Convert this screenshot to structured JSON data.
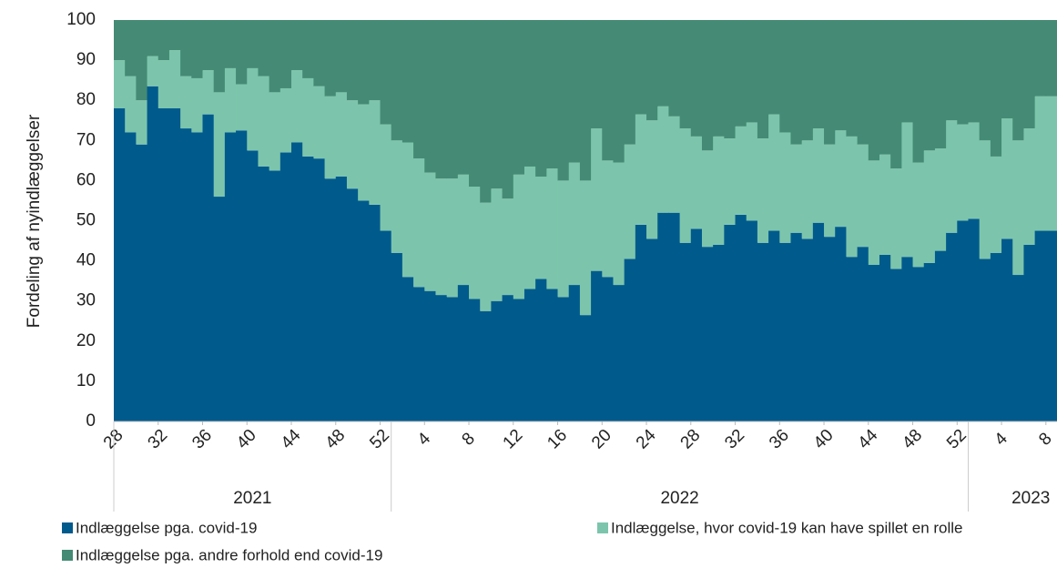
{
  "chart_data": {
    "type": "stacked_bar",
    "y_axis_label": "Fordeling af nyindlæggelser",
    "categories": [
      "28",
      null,
      null,
      null,
      "32",
      null,
      null,
      null,
      "36",
      null,
      null,
      null,
      "40",
      null,
      null,
      null,
      "44",
      null,
      null,
      null,
      "48",
      null,
      null,
      null,
      "52",
      null,
      null,
      null,
      "4",
      null,
      null,
      null,
      "8",
      null,
      null,
      null,
      "12",
      null,
      null,
      null,
      "16",
      null,
      null,
      null,
      "20",
      null,
      null,
      null,
      "24",
      null,
      null,
      null,
      "28",
      null,
      null,
      null,
      "32",
      null,
      null,
      null,
      "36",
      null,
      null,
      null,
      "40",
      null,
      null,
      null,
      "44",
      null,
      null,
      null,
      "48",
      null,
      null,
      null,
      "52",
      null,
      null,
      null,
      "4",
      null,
      null,
      null,
      "8"
    ],
    "x_groups": [
      "2021",
      "2022",
      "2023"
    ],
    "ylim": [
      0,
      100
    ],
    "yticks": [
      0,
      10,
      20,
      30,
      40,
      50,
      60,
      70,
      80,
      90,
      100
    ],
    "series": [
      {
        "name": "Indlæggelse pga. covid-19",
        "color": "#005a8c",
        "values": [
          78,
          72,
          69,
          83.5,
          78,
          78,
          73,
          72,
          76.5,
          56,
          72,
          72.5,
          67.5,
          63.5,
          62.5,
          67,
          69.5,
          66,
          65.5,
          60.5,
          61,
          58,
          55,
          54,
          47.5,
          42,
          36,
          33.5,
          32.5,
          31.5,
          31,
          34,
          30.5,
          27.5,
          30,
          31.5,
          30.5,
          33,
          35.5,
          33,
          31,
          34,
          26.5,
          37.5,
          36,
          34,
          40.5,
          49,
          45.5,
          52,
          52,
          44.5,
          48,
          43.5,
          44,
          49,
          51.5,
          50,
          44.5,
          47.5,
          44.5,
          47,
          45.5,
          49.5,
          46,
          48.5,
          41,
          43.5,
          39,
          41.5,
          38,
          41,
          38.5,
          39.5,
          42.5,
          47,
          50,
          50.5,
          40.5,
          42,
          45.5,
          36.5,
          44,
          47.5,
          47.5
        ]
      },
      {
        "name": "Indlæggelse, hvor covid-19 kan have spillet en rolle",
        "color": "#7cc5ac",
        "values": [
          12,
          14,
          11,
          7.5,
          12,
          14.5,
          13,
          13.5,
          11,
          26,
          16,
          11.5,
          20.5,
          22.5,
          19.5,
          16,
          18,
          19.5,
          18,
          20.5,
          21,
          22,
          24,
          26,
          26.5,
          28,
          33.5,
          32,
          29.5,
          29,
          29.5,
          27.5,
          28,
          27,
          28,
          24,
          31,
          30.5,
          25.5,
          30,
          29,
          30.5,
          33.5,
          35.5,
          29,
          30.5,
          28.5,
          27.5,
          29.5,
          26.5,
          24,
          28.5,
          23,
          24,
          27,
          21.5,
          22,
          24.5,
          26,
          29,
          27.5,
          22,
          24.5,
          23.5,
          23,
          24,
          30,
          25.5,
          26,
          25,
          25,
          33.5,
          26,
          28,
          25.5,
          28,
          24,
          24,
          29.5,
          24,
          30,
          33.5,
          29,
          33.5,
          33.5
        ]
      },
      {
        "name": "Indlæggelse pga. andre forhold end covid-19",
        "color": "#448a74",
        "values": [
          10,
          14,
          20,
          9,
          10,
          7.5,
          14,
          14.5,
          12.5,
          18,
          12,
          16,
          12,
          14,
          18,
          17,
          12.5,
          14.5,
          16.5,
          19,
          18,
          20,
          21,
          20,
          26,
          30,
          30.5,
          34.5,
          38,
          39.5,
          39.5,
          38.5,
          41.5,
          45.5,
          42,
          44.5,
          38.5,
          36.5,
          39,
          37,
          40,
          35.5,
          40,
          27,
          35,
          35.5,
          31,
          23.5,
          25,
          21.5,
          24,
          27,
          29,
          32.5,
          29,
          29.5,
          26.5,
          25.5,
          29.5,
          23.5,
          28,
          31,
          30,
          27,
          31,
          27.5,
          29,
          31,
          35,
          33.5,
          37,
          25.5,
          35.5,
          32.5,
          32,
          25,
          26,
          25.5,
          30,
          34,
          24.5,
          30,
          27,
          19,
          19
        ]
      }
    ]
  }
}
